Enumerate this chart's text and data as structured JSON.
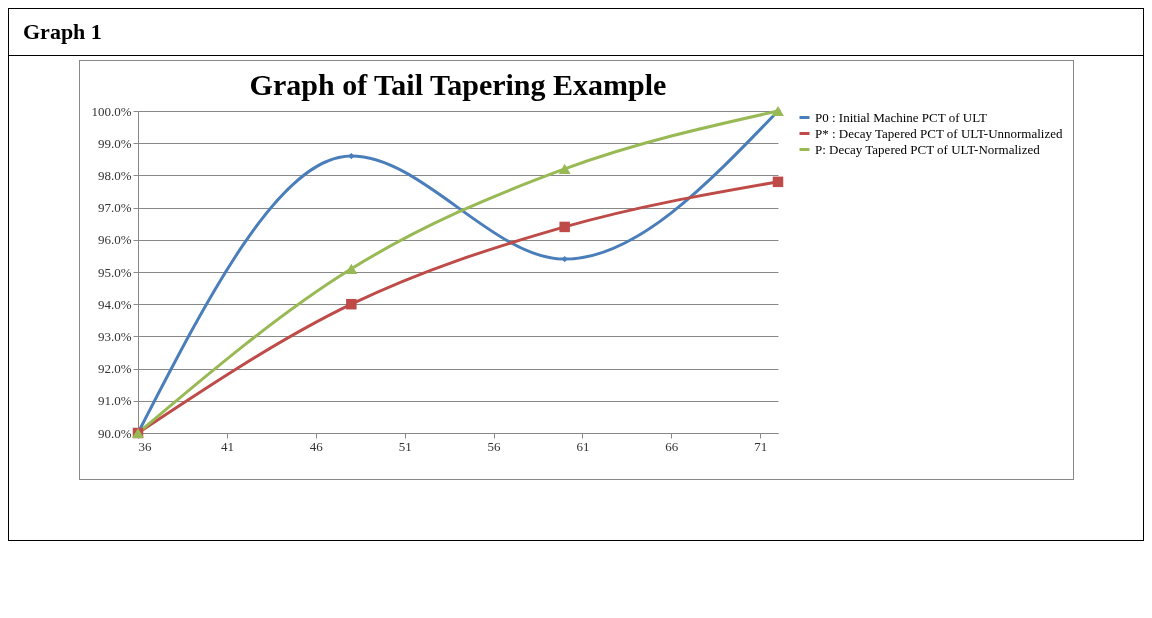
{
  "chart_data": {
    "type": "line",
    "title": "Graph of Tail Tapering Example",
    "annotations": [
      "Graph 1"
    ],
    "x": [
      36,
      48,
      60,
      72
    ],
    "series": [
      {
        "name": "P0 : Initial Machine PCT of ULT",
        "color": "#4a7ebb",
        "marker": "diamond",
        "values": [
          90.0,
          98.6,
          95.4,
          100.0
        ]
      },
      {
        "name": "P* : Decay Tapered PCT of ULT-Unnormalized",
        "color": "#be4b48",
        "marker": "square",
        "values": [
          90.0,
          94.0,
          96.4,
          97.8
        ]
      },
      {
        "name": "P: Decay Tapered PCT of ULT-Normalized",
        "color": "#98b954",
        "marker": "triangle",
        "values": [
          90.0,
          95.1,
          98.2,
          100.0
        ]
      }
    ],
    "xlim": [
      36,
      72
    ],
    "xticks": [
      36,
      41,
      46,
      51,
      56,
      61,
      66,
      71
    ],
    "ylim": [
      90,
      100
    ],
    "yticks": [
      {
        "value": 90,
        "label": "90.0%"
      },
      {
        "value": 91,
        "label": "91.0%"
      },
      {
        "value": 92,
        "label": "92.0%"
      },
      {
        "value": 93,
        "label": "93.0%"
      },
      {
        "value": 94,
        "label": "94.0%"
      },
      {
        "value": 95,
        "label": "95.0%"
      },
      {
        "value": 96,
        "label": "96.0%"
      },
      {
        "value": 97,
        "label": "97.0%"
      },
      {
        "value": 98,
        "label": "98.0%"
      },
      {
        "value": 99,
        "label": "99.0%"
      },
      {
        "value": 100,
        "label": "100.0%"
      }
    ],
    "grid": "y",
    "legend": "right",
    "line_style": "solid"
  }
}
